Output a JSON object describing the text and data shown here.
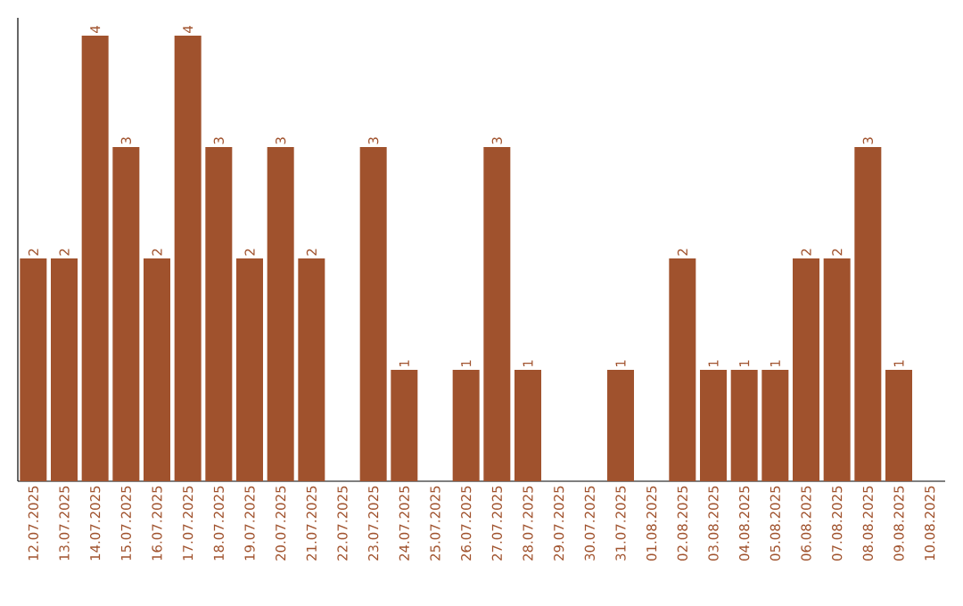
{
  "chart_data": {
    "type": "bar",
    "color": "#a0522d",
    "categories": [
      "12.07.2025",
      "13.07.2025",
      "14.07.2025",
      "15.07.2025",
      "16.07.2025",
      "17.07.2025",
      "18.07.2025",
      "19.07.2025",
      "20.07.2025",
      "21.07.2025",
      "22.07.2025",
      "23.07.2025",
      "24.07.2025",
      "25.07.2025",
      "26.07.2025",
      "27.07.2025",
      "28.07.2025",
      "29.07.2025",
      "30.07.2025",
      "31.07.2025",
      "01.08.2025",
      "02.08.2025",
      "03.08.2025",
      "04.08.2025",
      "05.08.2025",
      "06.08.2025",
      "07.08.2025",
      "08.08.2025",
      "09.08.2025",
      "10.08.2025"
    ],
    "values": [
      2,
      2,
      4,
      3,
      2,
      4,
      3,
      2,
      3,
      2,
      0,
      3,
      1,
      0,
      1,
      3,
      1,
      0,
      0,
      1,
      0,
      2,
      1,
      1,
      1,
      2,
      2,
      3,
      1,
      0
    ],
    "value_labels": [
      "2",
      "2",
      "4",
      "3",
      "2",
      "4",
      "3",
      "2",
      "3",
      "2",
      null,
      "3",
      "1",
      null,
      "1",
      "3",
      "1",
      null,
      null,
      "1",
      null,
      "2",
      "1",
      "1",
      "1",
      "2",
      "2",
      "3",
      "1",
      null
    ],
    "grid": false
  }
}
